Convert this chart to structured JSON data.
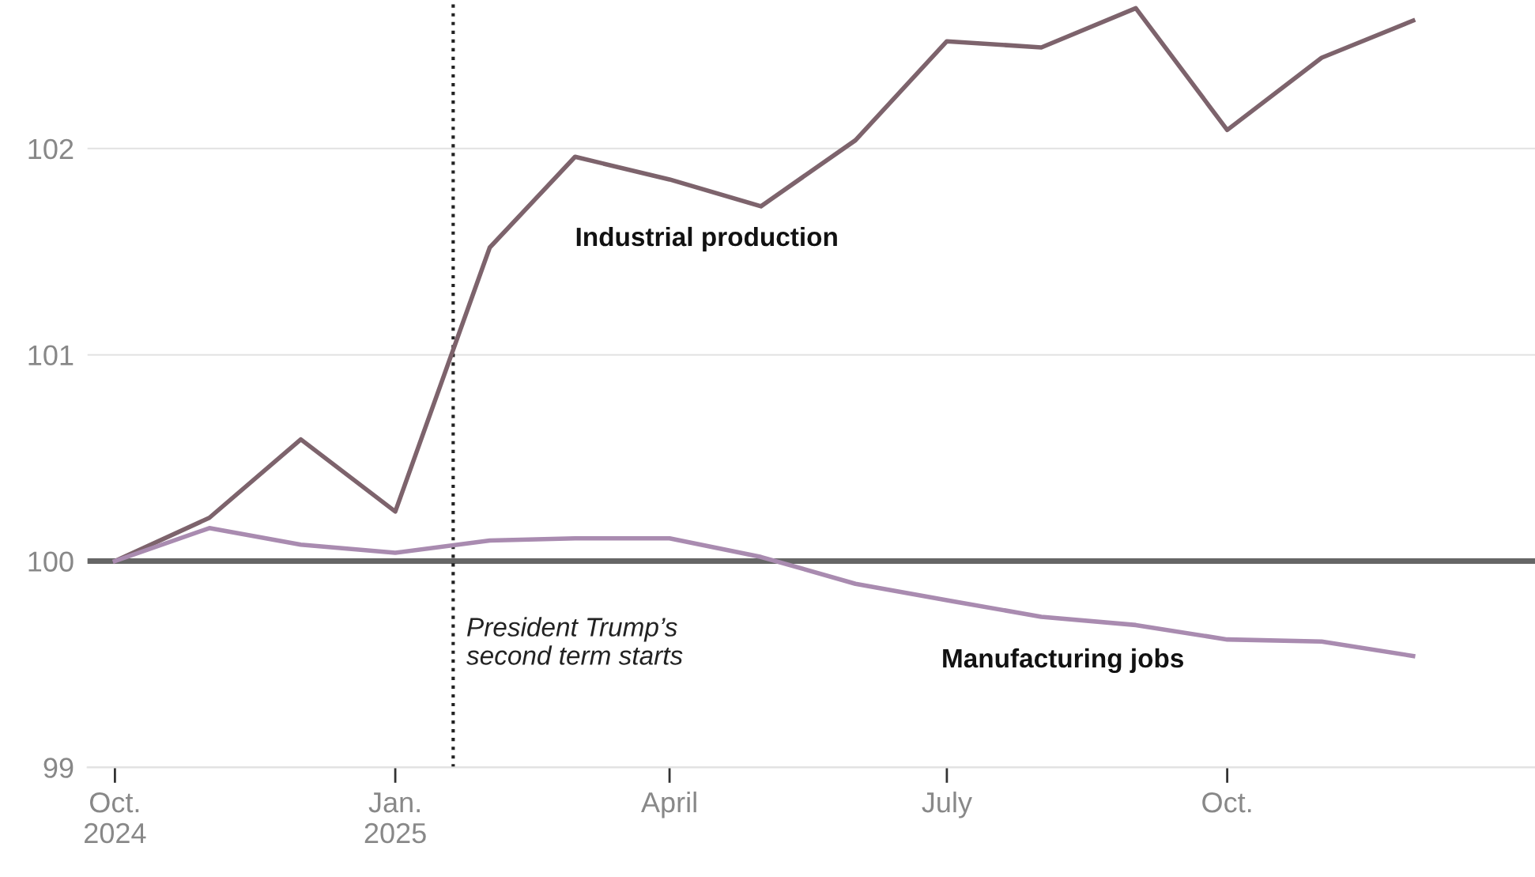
{
  "chart_data": {
    "type": "line",
    "x": [
      "2024-10",
      "2024-11",
      "2024-12",
      "2025-01",
      "2025-02",
      "2025-03",
      "2025-04",
      "2025-05",
      "2025-06",
      "2025-07",
      "2025-08",
      "2025-09",
      "2025-10",
      "2025-11",
      "2025-12"
    ],
    "series": [
      {
        "name": "Industrial production",
        "color": "#7d636c",
        "values": [
          100,
          100.21,
          100.59,
          100.24,
          101.52,
          101.96,
          101.85,
          101.72,
          102.04,
          102.52,
          102.49,
          102.68,
          102.09,
          102.44,
          102.62
        ]
      },
      {
        "name": "Manufacturing jobs",
        "color": "#a98bb0",
        "values": [
          100,
          100.16,
          100.08,
          100.04,
          100.1,
          100.11,
          100.11,
          100.02,
          99.89,
          99.81,
          99.73,
          99.69,
          99.62,
          99.61,
          99.54
        ]
      }
    ],
    "xlim": [
      "2024-09-22",
      "2026-01-10"
    ],
    "xticks": [
      {
        "value": "2024-10-01",
        "label": "Oct.\n2024"
      },
      {
        "value": "2025-01-01",
        "label": "Jan.\n2025"
      },
      {
        "value": "2025-04-01",
        "label": "April"
      },
      {
        "value": "2025-07-01",
        "label": "July"
      },
      {
        "value": "2025-10-01",
        "label": "Oct."
      }
    ],
    "ylim": [
      99,
      102.72
    ],
    "yticks": [
      99,
      100,
      101,
      102
    ],
    "grid": "y",
    "ref_lines": [
      {
        "axis": "y",
        "value": 100,
        "color": "#666666",
        "line_style": "solid"
      },
      {
        "axis": "x",
        "value": "2025-01-20",
        "color": "#222222",
        "line_style": "dotted"
      }
    ],
    "annotations": [
      {
        "text": "President Trump’s\nsecond term starts",
        "x": "2025-01-20",
        "y": 99.6
      }
    ],
    "line_style": "solid",
    "marker": "none"
  }
}
